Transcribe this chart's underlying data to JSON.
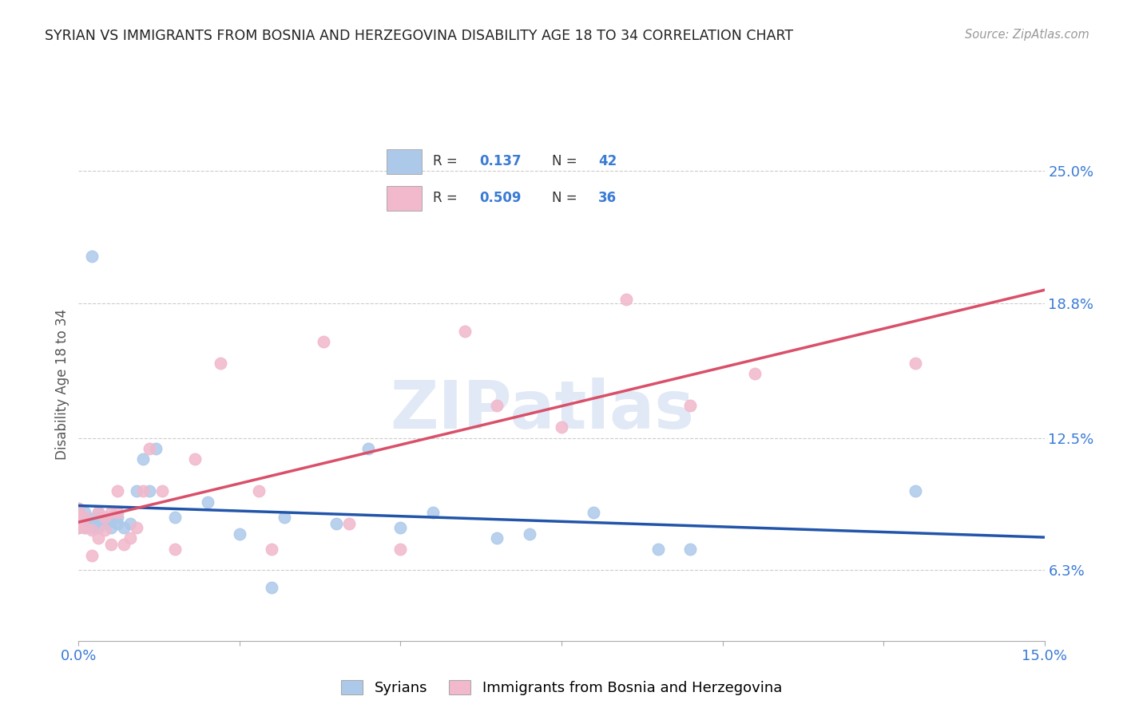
{
  "title": "SYRIAN VS IMMIGRANTS FROM BOSNIA AND HERZEGOVINA DISABILITY AGE 18 TO 34 CORRELATION CHART",
  "source": "Source: ZipAtlas.com",
  "ylabel": "Disability Age 18 to 34",
  "xlabel_syrians": "Syrians",
  "xlabel_bosnia": "Immigrants from Bosnia and Herzegovina",
  "xmin": 0.0,
  "xmax": 0.15,
  "ymin": 0.03,
  "ymax": 0.27,
  "yticks": [
    0.063,
    0.125,
    0.188,
    0.25
  ],
  "ytick_labels": [
    "6.3%",
    "12.5%",
    "18.8%",
    "25.0%"
  ],
  "xticks": [
    0.0,
    0.025,
    0.05,
    0.075,
    0.1,
    0.125,
    0.15
  ],
  "xtick_labels": [
    "0.0%",
    "",
    "",
    "",
    "",
    "",
    "15.0%"
  ],
  "color_syrians": "#adc9ea",
  "color_bosnia": "#f2b8cb",
  "line_color_syrians": "#2255aa",
  "line_color_bosnia": "#d9506a",
  "R_syrians": 0.137,
  "N_syrians": 42,
  "R_bosnia": 0.509,
  "N_bosnia": 36,
  "syrians_x": [
    0.0,
    0.0,
    0.0,
    0.0,
    0.001,
    0.001,
    0.001,
    0.002,
    0.002,
    0.002,
    0.003,
    0.003,
    0.003,
    0.003,
    0.004,
    0.004,
    0.005,
    0.005,
    0.005,
    0.006,
    0.006,
    0.007,
    0.008,
    0.009,
    0.01,
    0.011,
    0.012,
    0.015,
    0.02,
    0.025,
    0.03,
    0.032,
    0.04,
    0.045,
    0.05,
    0.055,
    0.065,
    0.07,
    0.08,
    0.09,
    0.095,
    0.13
  ],
  "syrians_y": [
    0.083,
    0.087,
    0.09,
    0.092,
    0.083,
    0.087,
    0.09,
    0.083,
    0.087,
    0.21,
    0.083,
    0.086,
    0.088,
    0.09,
    0.085,
    0.088,
    0.083,
    0.086,
    0.088,
    0.085,
    0.088,
    0.083,
    0.085,
    0.1,
    0.115,
    0.1,
    0.12,
    0.088,
    0.095,
    0.08,
    0.055,
    0.088,
    0.085,
    0.12,
    0.083,
    0.09,
    0.078,
    0.08,
    0.09,
    0.073,
    0.073,
    0.1
  ],
  "bosnia_x": [
    0.0,
    0.0,
    0.0,
    0.001,
    0.001,
    0.002,
    0.002,
    0.003,
    0.003,
    0.004,
    0.004,
    0.005,
    0.005,
    0.006,
    0.006,
    0.007,
    0.008,
    0.009,
    0.01,
    0.011,
    0.013,
    0.015,
    0.018,
    0.022,
    0.028,
    0.03,
    0.038,
    0.042,
    0.05,
    0.06,
    0.065,
    0.075,
    0.085,
    0.095,
    0.105,
    0.13
  ],
  "bosnia_y": [
    0.083,
    0.088,
    0.092,
    0.083,
    0.088,
    0.07,
    0.082,
    0.078,
    0.09,
    0.082,
    0.088,
    0.075,
    0.09,
    0.09,
    0.1,
    0.075,
    0.078,
    0.083,
    0.1,
    0.12,
    0.1,
    0.073,
    0.115,
    0.16,
    0.1,
    0.073,
    0.17,
    0.085,
    0.073,
    0.175,
    0.14,
    0.13,
    0.19,
    0.14,
    0.155,
    0.16
  ],
  "watermark": "ZIPatlas",
  "background_color": "#ffffff",
  "grid_color": "#cccccc"
}
